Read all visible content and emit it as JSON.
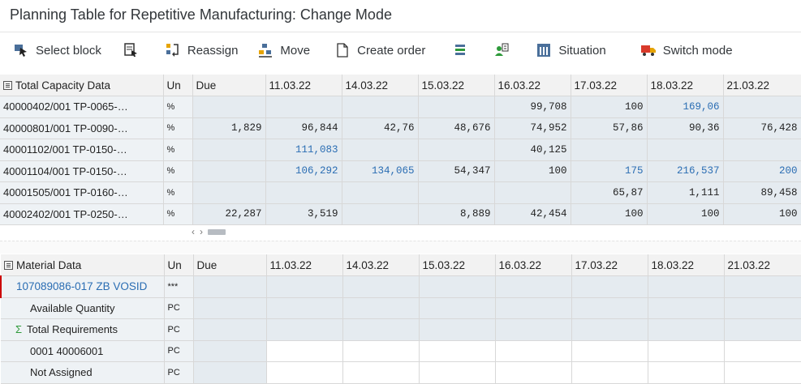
{
  "window": {
    "title": "Planning Table for Repetitive Manufacturing: Change Mode"
  },
  "toolbar": {
    "select_block": "Select block",
    "reassign": "Reassign",
    "move": "Move",
    "create_order": "Create order",
    "situation": "Situation",
    "switch_mode": "Switch mode"
  },
  "capacity": {
    "header": [
      "Total Capacity Data",
      "Un",
      "Due",
      "11.03.22",
      "14.03.22",
      "15.03.22",
      "16.03.22",
      "17.03.22",
      "18.03.22",
      "21.03.22"
    ],
    "rows": [
      {
        "label": "40000402/001 TP-0065-…",
        "un": "%",
        "cells": [
          "",
          "",
          "",
          "",
          "99,708",
          "100",
          "169,06",
          ""
        ]
      },
      {
        "label": "40000801/001 TP-0090-…",
        "un": "%",
        "cells": [
          "1,829",
          "96,844",
          "42,76",
          "48,676",
          "74,952",
          "57,86",
          "90,36",
          "76,428"
        ]
      },
      {
        "label": "40001102/001 TP-0150-…",
        "un": "%",
        "cells": [
          "",
          "111,083",
          "",
          "",
          "40,125",
          "",
          "",
          ""
        ]
      },
      {
        "label": "40001104/001 TP-0150-…",
        "un": "%",
        "cells": [
          "",
          "106,292",
          "134,065",
          "54,347",
          "100",
          "175",
          "216,537",
          "200"
        ]
      },
      {
        "label": "40001505/001 TP-0160-…",
        "un": "%",
        "cells": [
          "",
          "",
          "",
          "",
          "",
          "65,87",
          "1,111",
          "89,458"
        ]
      },
      {
        "label": "40002402/001 TP-0250-…",
        "un": "%",
        "cells": [
          "22,287",
          "3,519",
          "",
          "8,889",
          "42,454",
          "100",
          "100",
          "100"
        ]
      }
    ]
  },
  "scroll": {
    "left": "‹",
    "right": "›"
  },
  "material": {
    "header": [
      "Material Data",
      "Un",
      "Due",
      "11.03.22",
      "14.03.22",
      "15.03.22",
      "16.03.22",
      "17.03.22",
      "18.03.22",
      "21.03.22"
    ],
    "rows": [
      {
        "label": "107089086-017 ZB VOSID",
        "un": "***"
      },
      {
        "label": "Available Quantity",
        "un": "PC"
      },
      {
        "label": "Total Requirements",
        "un": "PC",
        "prefix": "Σ"
      },
      {
        "label": "0001 40006001",
        "un": "PC"
      },
      {
        "label": "Not Assigned",
        "un": "PC"
      }
    ]
  },
  "colors": {
    "blue_value": "#2a6db3",
    "grid_bg": "#e5ebf0",
    "label_bg": "#eef2f5"
  }
}
